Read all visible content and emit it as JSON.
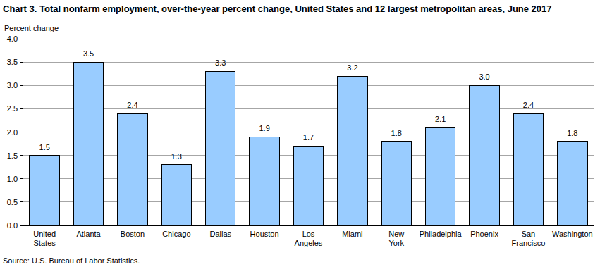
{
  "chart_data": {
    "type": "bar",
    "title": "Chart 3. Total nonfarm employment, over-the-year percent change, United States and 12 largest metropolitan areas, June 2017",
    "y_label": "Percent change",
    "source": "Source: U.S. Bureau of Labor Statistics.",
    "categories": [
      "United States",
      "Atlanta",
      "Boston",
      "Chicago",
      "Dallas",
      "Houston",
      "Los Angeles",
      "Miami",
      "New York",
      "Philadelphia",
      "Phoenix",
      "San Francisco",
      "Washington"
    ],
    "values": [
      1.5,
      3.5,
      2.4,
      1.3,
      3.3,
      1.9,
      1.7,
      3.2,
      1.8,
      2.1,
      3.0,
      2.4,
      1.8
    ],
    "value_labels": [
      "1.5",
      "3.5",
      "2.4",
      "1.3",
      "3.3",
      "1.9",
      "1.7",
      "3.2",
      "1.8",
      "2.1",
      "3.0",
      "2.4",
      "1.8"
    ],
    "color": "#99ccff",
    "ylim": [
      0,
      4
    ],
    "yticks": [
      {
        "value": 0,
        "label": "0.0"
      },
      0.5,
      {
        "value": 1,
        "label": "1.0"
      },
      1.5,
      {
        "value": 2,
        "label": "2.0"
      },
      2.5,
      {
        "value": 3,
        "label": "3.0"
      },
      3.5,
      {
        "value": 4,
        "label": "4.0"
      }
    ],
    "grid": true,
    "data_labels": true
  }
}
